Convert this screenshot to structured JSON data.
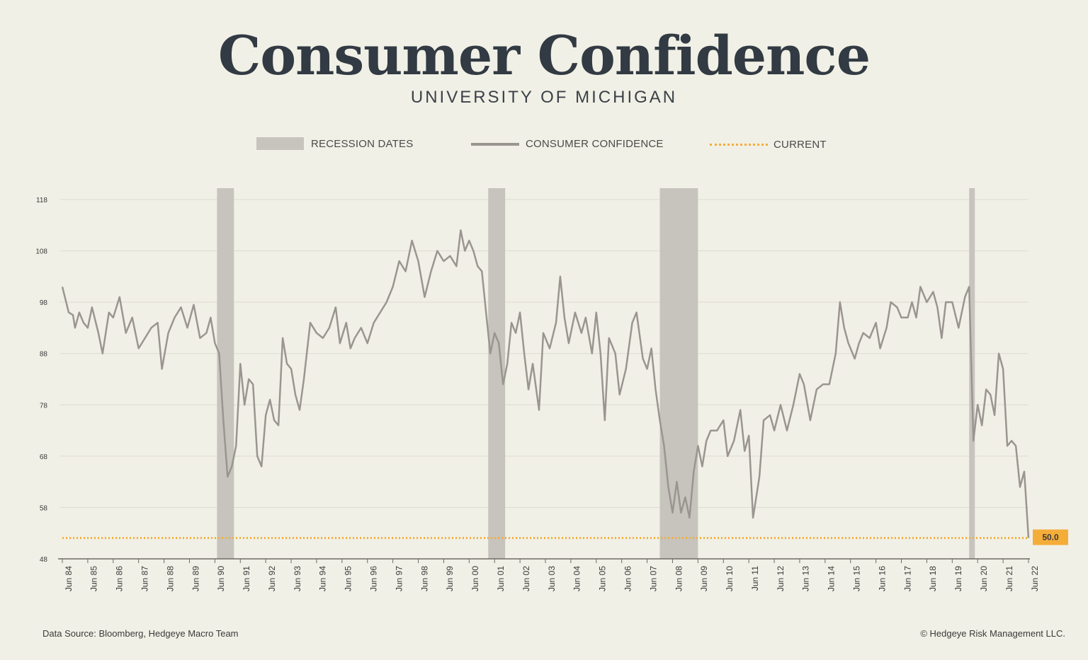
{
  "header": {
    "title": "Consumer Confidence",
    "subtitle": "UNIVERSITY OF MICHIGAN"
  },
  "legend": {
    "recession": "RECESSION DATES",
    "series": "CONSUMER CONFIDENCE",
    "current": "CURRENT"
  },
  "footer": {
    "source": "Data Source: Bloomberg, Hedgeye Macro Team",
    "copyright": "© Hedgeye Risk Management LLC."
  },
  "colors": {
    "background": "#f1f0e6",
    "line": "#9a9590",
    "recession": "#c6c4bd",
    "current": "#f5ad3a",
    "grid": "#dcdbd2"
  },
  "chart_data": {
    "type": "line",
    "title": "Consumer Confidence",
    "subtitle": "UNIVERSITY OF MICHIGAN",
    "xlabel": "",
    "ylabel": "",
    "ylim": [
      48,
      118
    ],
    "yticks": [
      48,
      58,
      68,
      78,
      88,
      98,
      108,
      118
    ],
    "xlim": [
      "1984-06",
      "2022-06"
    ],
    "xtick_labels": [
      "Jun 84",
      "Jun 85",
      "Jun 86",
      "Jun 87",
      "Jun 88",
      "Jun 89",
      "Jun 90",
      "Jun 91",
      "Jun 92",
      "Jun 93",
      "Jun 94",
      "Jun 95",
      "Jun 96",
      "Jun 97",
      "Jun 98",
      "Jun 99",
      "Jun 00",
      "Jun 01",
      "Jun 02",
      "Jun 03",
      "Jun 04",
      "Jun 05",
      "Jun 06",
      "Jun 07",
      "Jun 08",
      "Jun 09",
      "Jun 10",
      "Jun 11",
      "Jun 12",
      "Jun 13",
      "Jun 14",
      "Jun 15",
      "Jun 16",
      "Jun 17",
      "Jun 18",
      "Jun 19",
      "Jun 20",
      "Jun 21",
      "Jun 22"
    ],
    "grid": true,
    "legend_position": "top-center",
    "recessions": [
      {
        "start": "1990-07",
        "end": "1991-03"
      },
      {
        "start": "2001-03",
        "end": "2001-11"
      },
      {
        "start": "2007-12",
        "end": "2009-06"
      },
      {
        "start": "2020-02",
        "end": "2020-04"
      }
    ],
    "current_value": 50.0,
    "current_label": "50.0",
    "series": [
      {
        "name": "CONSUMER CONFIDENCE",
        "points": [
          [
            "1984-06",
            101
          ],
          [
            "1984-09",
            96
          ],
          [
            "1984-11",
            95.5
          ],
          [
            "1984-12",
            93
          ],
          [
            "1985-02",
            96
          ],
          [
            "1985-04",
            94
          ],
          [
            "1985-06",
            93
          ],
          [
            "1985-08",
            97
          ],
          [
            "1985-11",
            92
          ],
          [
            "1986-01",
            88
          ],
          [
            "1986-04",
            96
          ],
          [
            "1986-06",
            95
          ],
          [
            "1986-09",
            99
          ],
          [
            "1986-12",
            92
          ],
          [
            "1987-03",
            95
          ],
          [
            "1987-06",
            89
          ],
          [
            "1987-09",
            91
          ],
          [
            "1987-12",
            93
          ],
          [
            "1988-03",
            94
          ],
          [
            "1988-05",
            85
          ],
          [
            "1988-08",
            92
          ],
          [
            "1988-11",
            95
          ],
          [
            "1989-02",
            97
          ],
          [
            "1989-05",
            93
          ],
          [
            "1989-08",
            97.5
          ],
          [
            "1989-11",
            91
          ],
          [
            "1990-02",
            92
          ],
          [
            "1990-04",
            95
          ],
          [
            "1990-06",
            90
          ],
          [
            "1990-08",
            88
          ],
          [
            "1990-10",
            75
          ],
          [
            "1990-12",
            64
          ],
          [
            "1991-02",
            66
          ],
          [
            "1991-04",
            70
          ],
          [
            "1991-06",
            86
          ],
          [
            "1991-08",
            78
          ],
          [
            "1991-10",
            83
          ],
          [
            "1991-12",
            82
          ],
          [
            "1992-02",
            68
          ],
          [
            "1992-04",
            66
          ],
          [
            "1992-06",
            76
          ],
          [
            "1992-08",
            79
          ],
          [
            "1992-10",
            75
          ],
          [
            "1992-12",
            74
          ],
          [
            "1993-02",
            91
          ],
          [
            "1993-04",
            86
          ],
          [
            "1993-06",
            85
          ],
          [
            "1993-08",
            80
          ],
          [
            "1993-10",
            77
          ],
          [
            "1993-12",
            83
          ],
          [
            "1994-03",
            94
          ],
          [
            "1994-06",
            92
          ],
          [
            "1994-09",
            91
          ],
          [
            "1994-12",
            93
          ],
          [
            "1995-03",
            97
          ],
          [
            "1995-05",
            90
          ],
          [
            "1995-08",
            94
          ],
          [
            "1995-10",
            89
          ],
          [
            "1995-12",
            91
          ],
          [
            "1996-03",
            93
          ],
          [
            "1996-06",
            90
          ],
          [
            "1996-09",
            94
          ],
          [
            "1996-12",
            96
          ],
          [
            "1997-03",
            98
          ],
          [
            "1997-06",
            101
          ],
          [
            "1997-09",
            106
          ],
          [
            "1997-12",
            104
          ],
          [
            "1998-03",
            110
          ],
          [
            "1998-06",
            106
          ],
          [
            "1998-09",
            99
          ],
          [
            "1998-12",
            104
          ],
          [
            "1999-03",
            108
          ],
          [
            "1999-06",
            106
          ],
          [
            "1999-09",
            107
          ],
          [
            "1999-12",
            105
          ],
          [
            "2000-02",
            112
          ],
          [
            "2000-04",
            108
          ],
          [
            "2000-06",
            110
          ],
          [
            "2000-08",
            108
          ],
          [
            "2000-10",
            105
          ],
          [
            "2000-12",
            104
          ],
          [
            "2001-02",
            96
          ],
          [
            "2001-04",
            88
          ],
          [
            "2001-06",
            92
          ],
          [
            "2001-08",
            90
          ],
          [
            "2001-10",
            82
          ],
          [
            "2001-12",
            86
          ],
          [
            "2002-02",
            94
          ],
          [
            "2002-04",
            92
          ],
          [
            "2002-06",
            96
          ],
          [
            "2002-08",
            88
          ],
          [
            "2002-10",
            81
          ],
          [
            "2002-12",
            86
          ],
          [
            "2003-03",
            77
          ],
          [
            "2003-05",
            92
          ],
          [
            "2003-08",
            89
          ],
          [
            "2003-11",
            94
          ],
          [
            "2004-01",
            103
          ],
          [
            "2004-03",
            95
          ],
          [
            "2004-05",
            90
          ],
          [
            "2004-08",
            96
          ],
          [
            "2004-11",
            92
          ],
          [
            "2005-01",
            95
          ],
          [
            "2005-04",
            88
          ],
          [
            "2005-06",
            96
          ],
          [
            "2005-08",
            88
          ],
          [
            "2005-10",
            75
          ],
          [
            "2005-12",
            91
          ],
          [
            "2006-03",
            88
          ],
          [
            "2006-05",
            80
          ],
          [
            "2006-08",
            85
          ],
          [
            "2006-11",
            94
          ],
          [
            "2007-01",
            96
          ],
          [
            "2007-04",
            87
          ],
          [
            "2007-06",
            85
          ],
          [
            "2007-08",
            89
          ],
          [
            "2007-10",
            81
          ],
          [
            "2007-12",
            75
          ],
          [
            "2008-02",
            70
          ],
          [
            "2008-04",
            62
          ],
          [
            "2008-06",
            57
          ],
          [
            "2008-08",
            63
          ],
          [
            "2008-10",
            57
          ],
          [
            "2008-12",
            60
          ],
          [
            "2009-02",
            56
          ],
          [
            "2009-04",
            65
          ],
          [
            "2009-06",
            70
          ],
          [
            "2009-08",
            66
          ],
          [
            "2009-10",
            71
          ],
          [
            "2009-12",
            73
          ],
          [
            "2010-03",
            73
          ],
          [
            "2010-06",
            75
          ],
          [
            "2010-08",
            68
          ],
          [
            "2010-11",
            71
          ],
          [
            "2011-02",
            77
          ],
          [
            "2011-04",
            69
          ],
          [
            "2011-06",
            72
          ],
          [
            "2011-08",
            56
          ],
          [
            "2011-11",
            64
          ],
          [
            "2012-01",
            75
          ],
          [
            "2012-04",
            76
          ],
          [
            "2012-06",
            73
          ],
          [
            "2012-09",
            78
          ],
          [
            "2012-12",
            73
          ],
          [
            "2013-03",
            78
          ],
          [
            "2013-06",
            84
          ],
          [
            "2013-08",
            82
          ],
          [
            "2013-11",
            75
          ],
          [
            "2014-02",
            81
          ],
          [
            "2014-05",
            82
          ],
          [
            "2014-08",
            82
          ],
          [
            "2014-11",
            88
          ],
          [
            "2015-01",
            98
          ],
          [
            "2015-03",
            93
          ],
          [
            "2015-05",
            90
          ],
          [
            "2015-08",
            87
          ],
          [
            "2015-10",
            90
          ],
          [
            "2015-12",
            92
          ],
          [
            "2016-03",
            91
          ],
          [
            "2016-06",
            94
          ],
          [
            "2016-08",
            89
          ],
          [
            "2016-11",
            93
          ],
          [
            "2017-01",
            98
          ],
          [
            "2017-04",
            97
          ],
          [
            "2017-06",
            95
          ],
          [
            "2017-09",
            95
          ],
          [
            "2017-11",
            98
          ],
          [
            "2018-01",
            95
          ],
          [
            "2018-03",
            101
          ],
          [
            "2018-06",
            98
          ],
          [
            "2018-09",
            100
          ],
          [
            "2018-11",
            97
          ],
          [
            "2019-01",
            91
          ],
          [
            "2019-03",
            98
          ],
          [
            "2019-06",
            98
          ],
          [
            "2019-09",
            93
          ],
          [
            "2019-12",
            99
          ],
          [
            "2020-02",
            101
          ],
          [
            "2020-04",
            71
          ],
          [
            "2020-06",
            78
          ],
          [
            "2020-08",
            74
          ],
          [
            "2020-10",
            81
          ],
          [
            "2020-12",
            80
          ],
          [
            "2021-02",
            76
          ],
          [
            "2021-04",
            88
          ],
          [
            "2021-06",
            85
          ],
          [
            "2021-08",
            70
          ],
          [
            "2021-10",
            71
          ],
          [
            "2021-12",
            70
          ],
          [
            "2022-02",
            62
          ],
          [
            "2022-04",
            65
          ],
          [
            "2022-06",
            50
          ]
        ]
      }
    ]
  }
}
